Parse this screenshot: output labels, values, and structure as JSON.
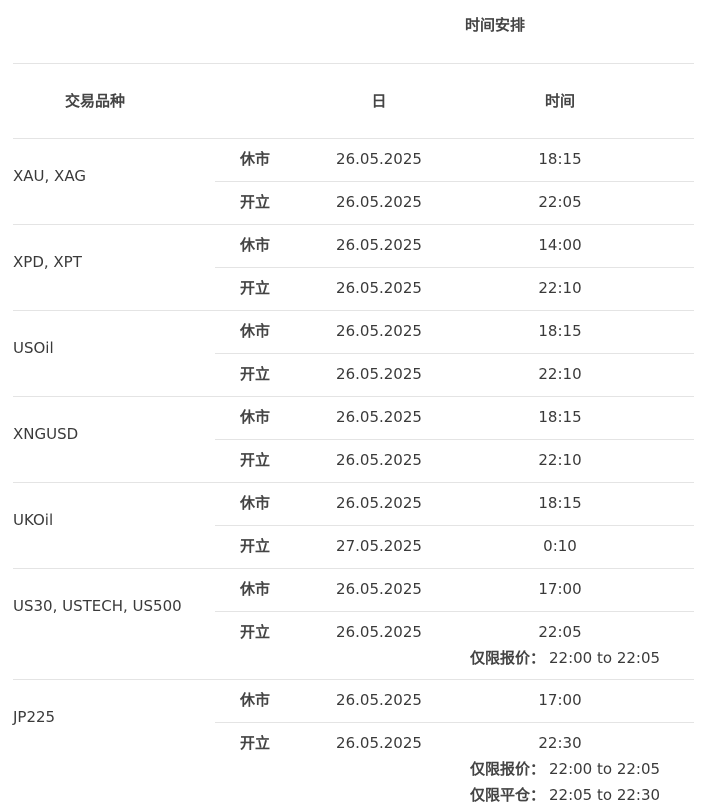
{
  "header": {
    "title": "时间安排",
    "columns": [
      "交易品种",
      "日",
      "时间"
    ]
  },
  "rows": [
    {
      "instrument": "XAU, XAG",
      "sessions": [
        {
          "label": "休市",
          "date": "26.05.2025",
          "time": "18:15",
          "notes": []
        },
        {
          "label": "开立",
          "date": "26.05.2025",
          "time": "22:05",
          "notes": []
        }
      ]
    },
    {
      "instrument": "XPD, XPT",
      "sessions": [
        {
          "label": "休市",
          "date": "26.05.2025",
          "time": "14:00",
          "notes": []
        },
        {
          "label": "开立",
          "date": "26.05.2025",
          "time": "22:10",
          "notes": []
        }
      ]
    },
    {
      "instrument": "USOil",
      "sessions": [
        {
          "label": "休市",
          "date": "26.05.2025",
          "time": "18:15",
          "notes": []
        },
        {
          "label": "开立",
          "date": "26.05.2025",
          "time": "22:10",
          "notes": []
        }
      ]
    },
    {
      "instrument": "XNGUSD",
      "sessions": [
        {
          "label": "休市",
          "date": "26.05.2025",
          "time": "18:15",
          "notes": []
        },
        {
          "label": "开立",
          "date": "26.05.2025",
          "time": "22:10",
          "notes": []
        }
      ]
    },
    {
      "instrument": "UKOil",
      "sessions": [
        {
          "label": "休市",
          "date": "26.05.2025",
          "time": "18:15",
          "notes": []
        },
        {
          "label": "开立",
          "date": "27.05.2025",
          "time": "0:10",
          "notes": []
        }
      ]
    },
    {
      "instrument": "US30, USTECH, US500",
      "sessions": [
        {
          "label": "休市",
          "date": "26.05.2025",
          "time": "17:00",
          "notes": []
        },
        {
          "label": "开立",
          "date": "26.05.2025",
          "time": "22:05",
          "notes": [
            {
              "label": "仅限报价：",
              "value": "22:00 to 22:05"
            }
          ]
        }
      ]
    },
    {
      "instrument": "JP225",
      "sessions": [
        {
          "label": "休市",
          "date": "26.05.2025",
          "time": "17:00",
          "notes": []
        },
        {
          "label": "开立",
          "date": "26.05.2025",
          "time": "22:30",
          "notes": [
            {
              "label": "仅限报价：",
              "value": "22:00 to 22:05"
            },
            {
              "label": "仅限平仓：",
              "value": "22:05 to 22:30"
            }
          ]
        }
      ]
    }
  ]
}
